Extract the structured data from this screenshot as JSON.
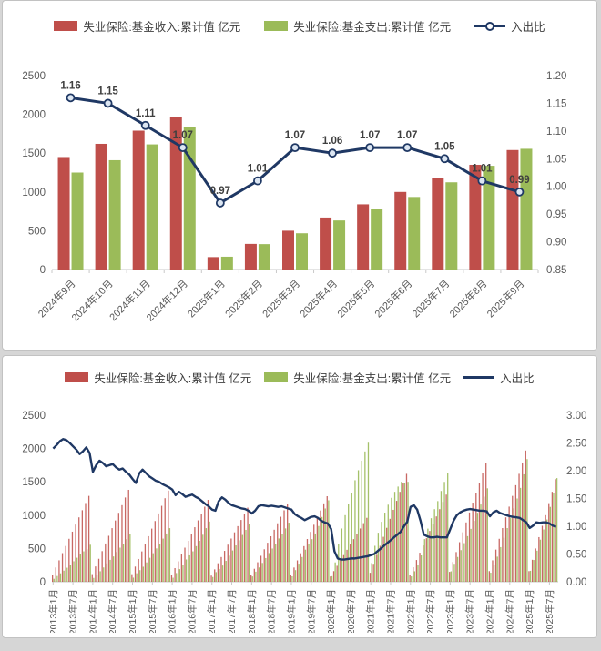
{
  "page": {
    "background": "#d6d6d6",
    "panel_background": "#ffffff",
    "income_color": "#bf4e4a",
    "expenditure_color": "#9bbb59",
    "line_color": "#1f3864",
    "axis_text_color": "#595959",
    "label_text_color": "#3f3f3f"
  },
  "chart_data": [
    {
      "type": "bar",
      "style": "grouped-bar-with-line",
      "title": "",
      "legend_position": "top",
      "grid": false,
      "categories": [
        "2024年9月",
        "2024年10月",
        "2024年11月",
        "2024年12月",
        "2025年1月",
        "2025年2月",
        "2025年3月",
        "2025年4月",
        "2025年5月",
        "2025年6月",
        "2025年7月",
        "2025年8月",
        "2025年9月"
      ],
      "series": [
        {
          "name": "失业保险:基金收入:累计值 亿元",
          "kind": "bar",
          "color": "#bf4e4a",
          "values": [
            1450,
            1620,
            1790,
            1970,
            160,
            330,
            500,
            670,
            840,
            1000,
            1180,
            1350,
            1540
          ]
        },
        {
          "name": "失业保险:基金支出:累计值 亿元",
          "kind": "bar",
          "color": "#9bbb59",
          "values": [
            1250,
            1409,
            1613,
            1841,
            165,
            327,
            467,
            632,
            785,
            935,
            1124,
            1337,
            1556
          ]
        },
        {
          "name": "入出比",
          "kind": "line",
          "axis": "right",
          "color": "#1f3864",
          "markers": true,
          "data_labels": true,
          "values": [
            1.16,
            1.15,
            1.11,
            1.07,
            0.97,
            1.01,
            1.07,
            1.06,
            1.07,
            1.07,
            1.05,
            1.01,
            0.99
          ]
        }
      ],
      "left_axis": {
        "min": 0,
        "max": 2500,
        "step": 500,
        "ticks": [
          "0",
          "500",
          "1000",
          "1500",
          "2000",
          "2500"
        ]
      },
      "right_axis": {
        "min": 0.85,
        "max": 1.2,
        "step": 0.05,
        "ticks": [
          "0.85",
          "0.90",
          "0.95",
          "1.00",
          "1.05",
          "1.10",
          "1.15",
          "1.20"
        ]
      },
      "x_label_rotation": -45
    },
    {
      "type": "bar",
      "style": "dense-monthly-bar-with-line",
      "title": "",
      "legend_position": "top",
      "grid": false,
      "x_range": "2013年1月 - 2025年9月 (monthly)",
      "x_tick_labels": [
        "2013年1月",
        "2013年7月",
        "2014年1月",
        "2014年7月",
        "2015年1月",
        "2015年7月",
        "2016年1月",
        "2016年7月",
        "2017年1月",
        "2017年7月",
        "2018年1月",
        "2018年7月",
        "2019年1月",
        "2019年7月",
        "2020年1月",
        "2020年7月",
        "2021年1月",
        "2021年7月",
        "2022年1月",
        "2022年7月",
        "2023年1月",
        "2023年7月",
        "2024年1月",
        "2024年7月",
        "2025年1月",
        "2025年7月"
      ],
      "series": [
        {
          "name": "失业保险:基金收入:累计值 亿元",
          "kind": "bar",
          "color": "#bf4e4a",
          "values": [
            107,
            215,
            322,
            430,
            537,
            645,
            752,
            859,
            967,
            1074,
            1182,
            1289,
            115,
            230,
            345,
            460,
            575,
            690,
            805,
            920,
            1035,
            1150,
            1265,
            1380,
            114,
            228,
            342,
            456,
            570,
            684,
            798,
            912,
            1026,
            1140,
            1254,
            1368,
            102,
            205,
            307,
            410,
            512,
            615,
            717,
            819,
            922,
            1024,
            1127,
            1229,
            93,
            186,
            278,
            371,
            464,
            557,
            649,
            742,
            835,
            928,
            1020,
            1113,
            98,
            195,
            293,
            390,
            488,
            586,
            683,
            781,
            878,
            976,
            1073,
            1171,
            107,
            214,
            321,
            428,
            535,
            642,
            749,
            856,
            963,
            1070,
            1177,
            1284,
            80,
            160,
            240,
            320,
            400,
            480,
            560,
            640,
            720,
            800,
            880,
            960,
            135,
            270,
            405,
            540,
            675,
            810,
            945,
            1080,
            1215,
            1350,
            1485,
            1620,
            109,
            218,
            327,
            436,
            545,
            654,
            763,
            872,
            981,
            1090,
            1199,
            1308,
            149,
            297,
            446,
            594,
            743,
            891,
            1040,
            1188,
            1337,
            1485,
            1634,
            1782,
            160,
            322,
            483,
            645,
            806,
            967,
            1128,
            1289,
            1450,
            1620,
            1790,
            1970,
            160,
            330,
            500,
            670,
            840,
            1000,
            1180,
            1350,
            1540
          ]
        },
        {
          "name": "失业保险:基金支出:累计值 亿元",
          "kind": "bar",
          "color": "#9bbb59",
          "values": [
            45,
            87,
            127,
            167,
            211,
            258,
            308,
            361,
            420,
            457,
            488,
            556,
            58,
            110,
            158,
            215,
            276,
            329,
            380,
            447,
            512,
            564,
            639,
            715,
            62,
            128,
            175,
            226,
            291,
            360,
            429,
            501,
            570,
            648,
            725,
            805,
            61,
            131,
            190,
            259,
            335,
            397,
            457,
            535,
            615,
            706,
            805,
            904,
            72,
            145,
            192,
            244,
            314,
            392,
            470,
            546,
            623,
            703,
            779,
            870,
            80,
            152,
            215,
            283,
            356,
            431,
            499,
            574,
            650,
            718,
            801,
            887,
            82,
            175,
            272,
            372,
            482,
            563,
            640,
            725,
            837,
            973,
            1100,
            1223,
            84,
            291,
            571,
            800,
            1000,
            1171,
            1333,
            1524,
            1674,
            1818,
            1956,
            2087,
            281,
            540,
            736,
            900,
            1038,
            1157,
            1260,
            1350,
            1429,
            1500,
            1485,
            1500,
            81,
            158,
            252,
            396,
            641,
            798,
            954,
            1090,
            1211,
            1363,
            1499,
            1635,
            157,
            270,
            372,
            475,
            580,
            685,
            794,
            914,
            1036,
            1160,
            1277,
            1403,
            136,
            258,
            377,
            520,
            661,
            806,
            956,
            1102,
            1250,
            1409,
            1613,
            1841,
            165,
            327,
            467,
            632,
            785,
            935,
            1124,
            1337,
            1556
          ]
        },
        {
          "name": "入出比",
          "kind": "line",
          "axis": "right",
          "color": "#1f3864",
          "markers": false,
          "data_labels": false,
          "values": [
            2.4,
            2.46,
            2.53,
            2.57,
            2.55,
            2.5,
            2.44,
            2.38,
            2.3,
            2.35,
            2.42,
            2.32,
            1.98,
            2.1,
            2.18,
            2.14,
            2.08,
            2.1,
            2.12,
            2.06,
            2.02,
            2.04,
            1.98,
            1.93,
            1.85,
            1.78,
            1.95,
            2.02,
            1.96,
            1.9,
            1.86,
            1.82,
            1.8,
            1.76,
            1.73,
            1.7,
            1.66,
            1.56,
            1.62,
            1.58,
            1.53,
            1.55,
            1.57,
            1.53,
            1.5,
            1.45,
            1.4,
            1.36,
            1.3,
            1.28,
            1.45,
            1.52,
            1.48,
            1.42,
            1.38,
            1.36,
            1.34,
            1.32,
            1.31,
            1.28,
            1.23,
            1.28,
            1.36,
            1.38,
            1.37,
            1.36,
            1.37,
            1.36,
            1.35,
            1.36,
            1.34,
            1.32,
            1.3,
            1.22,
            1.18,
            1.15,
            1.11,
            1.14,
            1.17,
            1.18,
            1.15,
            1.1,
            1.07,
            1.05,
            0.95,
            0.55,
            0.42,
            0.4,
            0.4,
            0.41,
            0.42,
            0.42,
            0.43,
            0.44,
            0.45,
            0.46,
            0.48,
            0.5,
            0.55,
            0.6,
            0.65,
            0.7,
            0.75,
            0.8,
            0.85,
            0.9,
            1.0,
            1.08,
            1.35,
            1.38,
            1.3,
            1.1,
            0.85,
            0.82,
            0.8,
            0.8,
            0.81,
            0.8,
            0.8,
            0.8,
            0.95,
            1.1,
            1.2,
            1.25,
            1.28,
            1.3,
            1.31,
            1.3,
            1.29,
            1.28,
            1.28,
            1.27,
            1.18,
            1.25,
            1.28,
            1.24,
            1.22,
            1.2,
            1.18,
            1.17,
            1.16,
            1.15,
            1.11,
            1.07,
            0.97,
            1.01,
            1.07,
            1.06,
            1.07,
            1.07,
            1.05,
            1.01,
            0.99
          ]
        }
      ],
      "left_axis": {
        "min": 0,
        "max": 2500,
        "step": 500,
        "ticks": [
          "0",
          "500",
          "1000",
          "1500",
          "2000",
          "2500"
        ]
      },
      "right_axis": {
        "min": 0,
        "max": 3.0,
        "step": 0.5,
        "ticks": [
          "0.00",
          "0.50",
          "1.00",
          "1.50",
          "2.00",
          "2.50",
          "3.00"
        ]
      },
      "x_label_rotation": -90
    }
  ]
}
